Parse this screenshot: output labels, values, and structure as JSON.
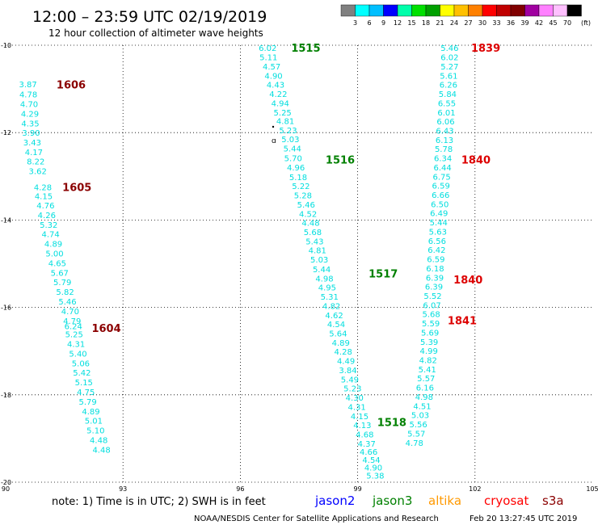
{
  "header": {
    "title": "12:00 – 23:59 UTC 02/19/2019",
    "subtitle": "12 hour collection of altimeter wave heights"
  },
  "legend": {
    "colors": [
      "#808080",
      "#00ffff",
      "#00bfff",
      "#0000ff",
      "#00ffaa",
      "#00e000",
      "#00a000",
      "#ffff00",
      "#ffc000",
      "#ff8000",
      "#ff0000",
      "#c00000",
      "#800000",
      "#a000a0",
      "#ff80ff",
      "#ffc0ff",
      "#000000"
    ],
    "labels": [
      "3",
      "6",
      "9",
      "12",
      "15",
      "18",
      "21",
      "24",
      "27",
      "30",
      "33",
      "36",
      "39",
      "42",
      "45",
      "70"
    ],
    "unit": "(ft)"
  },
  "footer": {
    "note": "note:  1) Time is in UTC; 2) SWH is in feet",
    "satellites": [
      {
        "name": "jason2",
        "color": "#0000ff"
      },
      {
        "name": "jason3",
        "color": "#008000"
      },
      {
        "name": "altika",
        "color": "#ff9900"
      },
      {
        "name": "cryosat",
        "color": "#ff0000"
      },
      {
        "name": "s3a",
        "color": "#8b0000"
      }
    ],
    "credit": "NOAA/NESDIS Center for Satellite Applications and Research",
    "timestamp": "Feb 20 13:27:45 UTC 2019"
  },
  "chart_data": {
    "type": "scatter",
    "title": "12:00 – 23:59 UTC 02/19/2019",
    "subtitle": "12 hour collection of altimeter wave heights",
    "x_ticks": [
      "90",
      "93",
      "96",
      "99",
      "102",
      "105"
    ],
    "y_ticks": [
      "-10",
      "-12",
      "-14",
      "-16",
      "-18",
      "-20"
    ],
    "xlim": [
      90,
      105
    ],
    "ylim": [
      -20,
      -10
    ],
    "grid": true,
    "tracks": [
      {
        "satellite": "s3a",
        "color": "#00dede",
        "points": [
          {
            "lon": 90.57,
            "lat": -10.89,
            "swh": "3.87"
          },
          {
            "lon": 90.58,
            "lat": -11.12,
            "swh": "4.78"
          },
          {
            "lon": 90.6,
            "lat": -11.34,
            "swh": "4.70"
          },
          {
            "lon": 90.62,
            "lat": -11.56,
            "swh": "4.29"
          },
          {
            "lon": 90.63,
            "lat": -11.78,
            "swh": "4.35"
          },
          {
            "lon": 90.65,
            "lat": -12.0,
            "swh": "3.90"
          },
          {
            "lon": 90.68,
            "lat": -12.22,
            "swh": "3.43"
          },
          {
            "lon": 90.72,
            "lat": -12.44,
            "swh": "4.17"
          },
          {
            "lon": 90.77,
            "lat": -12.65,
            "swh": "8.22"
          },
          {
            "lon": 90.82,
            "lat": -12.87,
            "swh": "3.62"
          },
          {
            "lon": 90.95,
            "lat": -13.24,
            "swh": "4.28"
          },
          {
            "lon": 90.97,
            "lat": -13.45,
            "swh": "4.15"
          },
          {
            "lon": 91.02,
            "lat": -13.66,
            "swh": "4.76"
          },
          {
            "lon": 91.05,
            "lat": -13.88,
            "swh": "4.26"
          },
          {
            "lon": 91.1,
            "lat": -14.1,
            "swh": "5.32"
          },
          {
            "lon": 91.15,
            "lat": -14.32,
            "swh": "4.74"
          },
          {
            "lon": 91.22,
            "lat": -14.54,
            "swh": "4.89"
          },
          {
            "lon": 91.25,
            "lat": -14.76,
            "swh": "5.00"
          },
          {
            "lon": 91.32,
            "lat": -14.98,
            "swh": "4.65"
          },
          {
            "lon": 91.38,
            "lat": -15.2,
            "swh": "5.67"
          },
          {
            "lon": 91.45,
            "lat": -15.42,
            "swh": "5.79"
          },
          {
            "lon": 91.52,
            "lat": -15.64,
            "swh": "5.82"
          },
          {
            "lon": 91.58,
            "lat": -15.86,
            "swh": "5.46"
          },
          {
            "lon": 91.65,
            "lat": -16.08,
            "swh": "4.70"
          },
          {
            "lon": 91.7,
            "lat": -16.3,
            "swh": "4.79"
          },
          {
            "lon": 91.73,
            "lat": -16.42,
            "swh": "6.24"
          },
          {
            "lon": 91.75,
            "lat": -16.61,
            "swh": "5.25"
          },
          {
            "lon": 91.8,
            "lat": -16.83,
            "swh": "4.31"
          },
          {
            "lon": 91.85,
            "lat": -17.05,
            "swh": "5.40"
          },
          {
            "lon": 91.92,
            "lat": -17.27,
            "swh": "5.06"
          },
          {
            "lon": 91.95,
            "lat": -17.49,
            "swh": "5.42"
          },
          {
            "lon": 92.0,
            "lat": -17.71,
            "swh": "5.15"
          },
          {
            "lon": 92.05,
            "lat": -17.93,
            "swh": "4.75"
          },
          {
            "lon": 92.1,
            "lat": -18.15,
            "swh": "5.79"
          },
          {
            "lon": 92.18,
            "lat": -18.37,
            "swh": "4.89"
          },
          {
            "lon": 92.25,
            "lat": -18.59,
            "swh": "5.01"
          },
          {
            "lon": 92.3,
            "lat": -18.81,
            "swh": "5.10"
          },
          {
            "lon": 92.38,
            "lat": -19.03,
            "swh": "4.48"
          },
          {
            "lon": 92.45,
            "lat": -19.25,
            "swh": "4.48"
          }
        ]
      },
      {
        "satellite": "jason3",
        "color": "#00dede",
        "points": [
          {
            "lon": 96.7,
            "lat": -10.06,
            "swh": "6.02"
          },
          {
            "lon": 96.72,
            "lat": -10.27,
            "swh": "5.11"
          },
          {
            "lon": 96.8,
            "lat": -10.48,
            "swh": "4.57"
          },
          {
            "lon": 96.85,
            "lat": -10.69,
            "swh": "4.90"
          },
          {
            "lon": 96.9,
            "lat": -10.9,
            "swh": "4.43"
          },
          {
            "lon": 96.97,
            "lat": -11.11,
            "swh": "4.22"
          },
          {
            "lon": 97.02,
            "lat": -11.32,
            "swh": "4.94"
          },
          {
            "lon": 97.08,
            "lat": -11.53,
            "swh": "5.25"
          },
          {
            "lon": 97.15,
            "lat": -11.73,
            "swh": "4.81"
          },
          {
            "lon": 97.22,
            "lat": -11.94,
            "swh": "5.23"
          },
          {
            "lon": 97.28,
            "lat": -12.14,
            "swh": "5.03"
          },
          {
            "lon": 97.33,
            "lat": -12.36,
            "swh": "5.44"
          },
          {
            "lon": 97.35,
            "lat": -12.58,
            "swh": "5.70"
          },
          {
            "lon": 97.42,
            "lat": -12.79,
            "swh": "4.96"
          },
          {
            "lon": 97.48,
            "lat": -13.01,
            "swh": "5.18"
          },
          {
            "lon": 97.55,
            "lat": -13.22,
            "swh": "5.22"
          },
          {
            "lon": 97.6,
            "lat": -13.43,
            "swh": "5.28"
          },
          {
            "lon": 97.68,
            "lat": -13.64,
            "swh": "5.46"
          },
          {
            "lon": 97.73,
            "lat": -13.85,
            "swh": "4.52"
          },
          {
            "lon": 97.8,
            "lat": -14.06,
            "swh": "4.48"
          },
          {
            "lon": 97.85,
            "lat": -14.27,
            "swh": "5.68"
          },
          {
            "lon": 97.9,
            "lat": -14.48,
            "swh": "5.43"
          },
          {
            "lon": 97.97,
            "lat": -14.69,
            "swh": "4.81"
          },
          {
            "lon": 98.02,
            "lat": -14.9,
            "swh": "5.03"
          },
          {
            "lon": 98.08,
            "lat": -15.12,
            "swh": "5.44"
          },
          {
            "lon": 98.15,
            "lat": -15.33,
            "swh": "4.98"
          },
          {
            "lon": 98.22,
            "lat": -15.54,
            "swh": "4.95"
          },
          {
            "lon": 98.28,
            "lat": -15.75,
            "swh": "5.31"
          },
          {
            "lon": 98.33,
            "lat": -15.96,
            "swh": "4.82"
          },
          {
            "lon": 98.4,
            "lat": -16.17,
            "swh": "4.62"
          },
          {
            "lon": 98.45,
            "lat": -16.38,
            "swh": "4.54"
          },
          {
            "lon": 98.5,
            "lat": -16.59,
            "swh": "5.64"
          },
          {
            "lon": 98.57,
            "lat": -16.8,
            "swh": "4.89"
          },
          {
            "lon": 98.63,
            "lat": -17.01,
            "swh": "4.28"
          },
          {
            "lon": 98.7,
            "lat": -17.22,
            "swh": "4.49"
          },
          {
            "lon": 98.75,
            "lat": -17.43,
            "swh": "3.84"
          },
          {
            "lon": 98.8,
            "lat": -17.64,
            "swh": "5.49"
          },
          {
            "lon": 98.87,
            "lat": -17.85,
            "swh": "5.23"
          },
          {
            "lon": 98.92,
            "lat": -18.06,
            "swh": "4.30"
          },
          {
            "lon": 98.98,
            "lat": -18.27,
            "swh": "4.31"
          },
          {
            "lon": 99.05,
            "lat": -18.48,
            "swh": "4.15"
          },
          {
            "lon": 99.12,
            "lat": -18.69,
            "swh": "4.13"
          },
          {
            "lon": 99.18,
            "lat": -18.9,
            "swh": "4.68"
          },
          {
            "lon": 99.23,
            "lat": -19.11,
            "swh": "4.37"
          },
          {
            "lon": 99.28,
            "lat": -19.3,
            "swh": "4.66"
          },
          {
            "lon": 99.35,
            "lat": -19.48,
            "swh": "4.54"
          },
          {
            "lon": 99.4,
            "lat": -19.66,
            "swh": "4.90"
          },
          {
            "lon": 99.45,
            "lat": -19.84,
            "swh": "5.38"
          }
        ]
      },
      {
        "satellite": "cryosat",
        "color": "#00dede",
        "points": [
          {
            "lon": 101.35,
            "lat": -10.06,
            "swh": "5.46"
          },
          {
            "lon": 101.35,
            "lat": -10.27,
            "swh": "6.02"
          },
          {
            "lon": 101.35,
            "lat": -10.48,
            "swh": "5.27"
          },
          {
            "lon": 101.33,
            "lat": -10.69,
            "swh": "5.61"
          },
          {
            "lon": 101.32,
            "lat": -10.9,
            "swh": "6.26"
          },
          {
            "lon": 101.3,
            "lat": -11.11,
            "swh": "5.84"
          },
          {
            "lon": 101.28,
            "lat": -11.32,
            "swh": "6.55"
          },
          {
            "lon": 101.27,
            "lat": -11.53,
            "swh": "6.01"
          },
          {
            "lon": 101.25,
            "lat": -11.74,
            "swh": "6.06"
          },
          {
            "lon": 101.23,
            "lat": -11.95,
            "swh": "6.43"
          },
          {
            "lon": 101.22,
            "lat": -12.16,
            "swh": "6.13"
          },
          {
            "lon": 101.2,
            "lat": -12.37,
            "swh": "5.78"
          },
          {
            "lon": 101.18,
            "lat": -12.58,
            "swh": "6.34"
          },
          {
            "lon": 101.17,
            "lat": -12.79,
            "swh": "6.44"
          },
          {
            "lon": 101.15,
            "lat": -13.0,
            "swh": "6.75"
          },
          {
            "lon": 101.13,
            "lat": -13.21,
            "swh": "6.59"
          },
          {
            "lon": 101.12,
            "lat": -13.42,
            "swh": "6.66"
          },
          {
            "lon": 101.1,
            "lat": -13.63,
            "swh": "6.50"
          },
          {
            "lon": 101.08,
            "lat": -13.84,
            "swh": "6.49"
          },
          {
            "lon": 101.07,
            "lat": -14.05,
            "swh": "5.44"
          },
          {
            "lon": 101.05,
            "lat": -14.26,
            "swh": "5.63"
          },
          {
            "lon": 101.03,
            "lat": -14.47,
            "swh": "6.56"
          },
          {
            "lon": 101.02,
            "lat": -14.68,
            "swh": "6.42"
          },
          {
            "lon": 101.0,
            "lat": -14.89,
            "swh": "6.59"
          },
          {
            "lon": 100.98,
            "lat": -15.1,
            "swh": "6.18"
          },
          {
            "lon": 100.97,
            "lat": -15.31,
            "swh": "6.39"
          },
          {
            "lon": 100.95,
            "lat": -15.52,
            "swh": "6.39"
          },
          {
            "lon": 100.92,
            "lat": -15.73,
            "swh": "5.52"
          },
          {
            "lon": 100.9,
            "lat": -15.94,
            "swh": "6.07"
          },
          {
            "lon": 100.88,
            "lat": -16.15,
            "swh": "5.68"
          },
          {
            "lon": 100.87,
            "lat": -16.36,
            "swh": "5.59"
          },
          {
            "lon": 100.85,
            "lat": -16.57,
            "swh": "5.69"
          },
          {
            "lon": 100.83,
            "lat": -16.78,
            "swh": "5.39"
          },
          {
            "lon": 100.82,
            "lat": -16.99,
            "swh": "4.99"
          },
          {
            "lon": 100.8,
            "lat": -17.2,
            "swh": "4.82"
          },
          {
            "lon": 100.78,
            "lat": -17.41,
            "swh": "5.41"
          },
          {
            "lon": 100.75,
            "lat": -17.62,
            "swh": "5.57"
          },
          {
            "lon": 100.72,
            "lat": -17.83,
            "swh": "6.16"
          },
          {
            "lon": 100.7,
            "lat": -18.04,
            "swh": "4.98"
          },
          {
            "lon": 100.65,
            "lat": -18.25,
            "swh": "4.51"
          },
          {
            "lon": 100.6,
            "lat": -18.46,
            "swh": "5.03"
          },
          {
            "lon": 100.55,
            "lat": -18.67,
            "swh": "5.56"
          },
          {
            "lon": 100.5,
            "lat": -18.88,
            "swh": "5.57"
          },
          {
            "lon": 100.45,
            "lat": -19.09,
            "swh": "4.78"
          }
        ]
      }
    ],
    "pass_labels": [
      {
        "text": "1606",
        "lon": 91.3,
        "lat": -10.9,
        "color": "#8b0000"
      },
      {
        "text": "1605",
        "lon": 91.45,
        "lat": -13.24,
        "color": "#8b0000"
      },
      {
        "text": "1604",
        "lon": 92.2,
        "lat": -16.47,
        "color": "#8b0000"
      },
      {
        "text": "1515",
        "lon": 97.3,
        "lat": -10.06,
        "color": "#008000"
      },
      {
        "text": "1516",
        "lon": 98.18,
        "lat": -12.62,
        "color": "#008000"
      },
      {
        "text": "1517",
        "lon": 99.28,
        "lat": -15.22,
        "color": "#008000"
      },
      {
        "text": "1518",
        "lon": 99.5,
        "lat": -18.62,
        "color": "#008000"
      },
      {
        "text": "1839",
        "lon": 101.9,
        "lat": -10.06,
        "color": "#dd0000"
      },
      {
        "text": "1840",
        "lon": 101.65,
        "lat": -12.62,
        "color": "#dd0000"
      },
      {
        "text": "1840",
        "lon": 101.45,
        "lat": -15.36,
        "color": "#dd0000"
      },
      {
        "text": "1841",
        "lon": 101.3,
        "lat": -16.29,
        "color": "#dd0000"
      }
    ]
  }
}
